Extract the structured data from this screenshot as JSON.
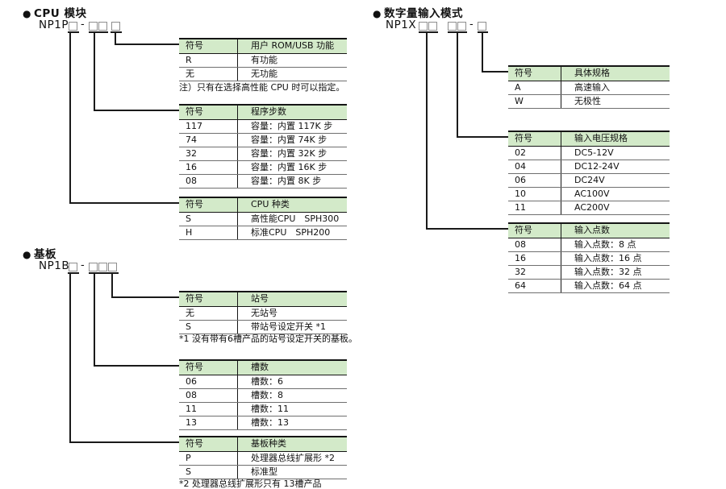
{
  "palette": {
    "header_bg": "#d3eac9",
    "line_color": "#1a1a1a",
    "box_border": "#8e8e8e",
    "text": "#111111"
  },
  "glyphs": {
    "bullet": "●",
    "hyphen": "-"
  },
  "sections": {
    "cpu": {
      "title": "CPU 模块",
      "model": "NP1P",
      "tables": [
        {
          "headers": [
            "符号",
            "用户 ROM/USB 功能"
          ],
          "rows": [
            [
              "R",
              "有功能"
            ],
            [
              "无",
              "无功能"
            ]
          ],
          "note": "注）只有在选择高性能 CPU 时可以指定。"
        },
        {
          "headers": [
            "符号",
            "程序步数"
          ],
          "rows": [
            [
              "117",
              "容量：内置 117K 步"
            ],
            [
              "74",
              "容量：内置 74K 步"
            ],
            [
              "32",
              "容量：内置 32K 步"
            ],
            [
              "16",
              "容量：内置 16K 步"
            ],
            [
              "08",
              "容量：内置 8K 步"
            ]
          ]
        },
        {
          "headers": [
            "符号",
            "CPU 种类"
          ],
          "rows": [
            [
              "S",
              "高性能CPU　SPH300"
            ],
            [
              "H",
              "标准CPU　SPH200"
            ]
          ]
        }
      ]
    },
    "base": {
      "title": "基板",
      "model": "NP1B",
      "tables": [
        {
          "headers": [
            "符号",
            "站号"
          ],
          "rows": [
            [
              "无",
              "无站号"
            ],
            [
              "S",
              "带站号设定开关 *1"
            ]
          ],
          "note": "*1 没有带有6槽产品的站号设定开关的基板。"
        },
        {
          "headers": [
            "符号",
            "槽数"
          ],
          "rows": [
            [
              "06",
              "槽数：6"
            ],
            [
              "08",
              "槽数：8"
            ],
            [
              "11",
              "槽数：11"
            ],
            [
              "13",
              "槽数：13"
            ]
          ]
        },
        {
          "headers": [
            "符号",
            "基板种类"
          ],
          "rows": [
            [
              "P",
              "处理器总线扩展形 *2"
            ],
            [
              "S",
              "标准型"
            ]
          ],
          "note": "*2 处理器总线扩展形只有 13槽产品"
        }
      ]
    },
    "input": {
      "title": "数字量输入模式",
      "model": "NP1X",
      "tables": [
        {
          "headers": [
            "符号",
            "具体规格"
          ],
          "rows": [
            [
              "A",
              "高速输入"
            ],
            [
              "W",
              "无极性"
            ]
          ]
        },
        {
          "headers": [
            "符号",
            "输入电压规格"
          ],
          "rows": [
            [
              "02",
              "DC5-12V"
            ],
            [
              "04",
              "DC12-24V"
            ],
            [
              "06",
              "DC24V"
            ],
            [
              "10",
              "AC100V"
            ],
            [
              "11",
              "AC200V"
            ]
          ]
        },
        {
          "headers": [
            "符号",
            "输入点数"
          ],
          "rows": [
            [
              "08",
              "输入点数：8 点"
            ],
            [
              "16",
              "输入点数：16 点"
            ],
            [
              "32",
              "输入点数：32 点"
            ],
            [
              "64",
              "输入点数：64 点"
            ]
          ]
        }
      ]
    }
  }
}
